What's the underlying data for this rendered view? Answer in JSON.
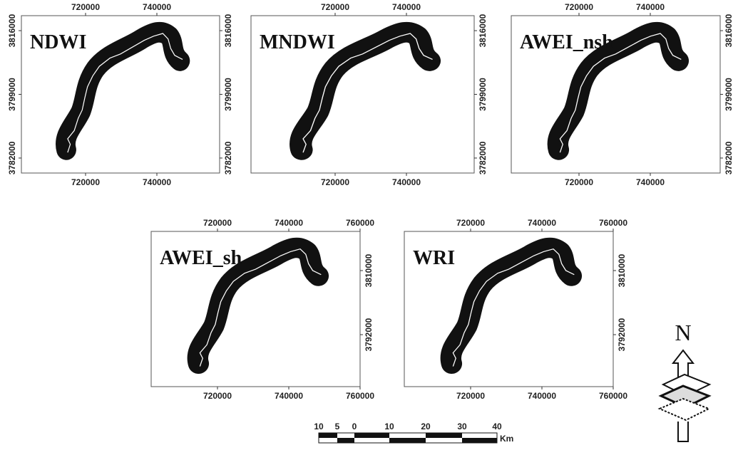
{
  "panels": [
    {
      "label": "NDWI",
      "xlim": [
        702000,
        757600
      ],
      "ylim": [
        3778000,
        3820000
      ],
      "xticks": [
        720000,
        740000
      ],
      "yticks": [
        3816000,
        3799000,
        3782000
      ]
    },
    {
      "label": "MNDWI",
      "xlim": [
        696400,
        759000
      ],
      "ylim": [
        3778000,
        3820000
      ],
      "xticks": [
        720000,
        740000
      ],
      "yticks": [
        3816000,
        3799000,
        3782000
      ]
    },
    {
      "label": "AWEI_nsh",
      "xlim": [
        701000,
        759600
      ],
      "ylim": [
        3778000,
        3820000
      ],
      "xticks": [
        720000,
        740000
      ],
      "yticks": [
        3816000,
        3799000,
        3782000
      ]
    },
    {
      "label": "AWEI_sh",
      "xlim": [
        701400,
        760000
      ],
      "ylim": [
        3777400,
        3821000
      ],
      "xticks": [
        720000,
        740000,
        760000
      ],
      "yticks": [
        3810000,
        3792000
      ]
    },
    {
      "label": "WRI",
      "xlim": [
        701400,
        760000
      ],
      "ylim": [
        3777400,
        3821000
      ],
      "xticks": [
        720000,
        740000,
        760000
      ],
      "yticks": [
        3810000,
        3792000
      ]
    }
  ],
  "scale_bar": {
    "labels": [
      10,
      5,
      0,
      10,
      20,
      30,
      40
    ],
    "unit": "Km"
  },
  "north_arrow": {
    "label": "N"
  }
}
